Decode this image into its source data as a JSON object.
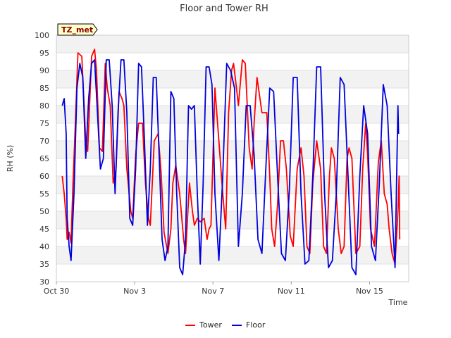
{
  "chart_data": {
    "type": "line",
    "title": "Floor and Tower RH",
    "xlabel": "Time",
    "ylabel": "RH (%)",
    "badge": "TZ_met",
    "xlim": [
      0,
      18
    ],
    "ylim": [
      30,
      100
    ],
    "x_ticks": [
      {
        "label": "Oct 30",
        "value": 0
      },
      {
        "label": "Nov 3",
        "value": 4
      },
      {
        "label": "Nov 7",
        "value": 8
      },
      {
        "label": "Nov 11",
        "value": 12
      },
      {
        "label": "Nov 15",
        "value": 16
      }
    ],
    "y_ticks": [
      30,
      35,
      40,
      45,
      50,
      55,
      60,
      65,
      70,
      75,
      80,
      85,
      90,
      95,
      100
    ],
    "legend": {
      "position": "bottom-center"
    },
    "series": [
      {
        "name": "Tower",
        "color": "#ff0000",
        "x": [
          0.3,
          0.4,
          0.5,
          0.55,
          0.65,
          0.75,
          0.85,
          0.95,
          1.1,
          1.3,
          1.5,
          1.6,
          1.8,
          1.95,
          2.05,
          2.2,
          2.35,
          2.5,
          2.6,
          2.75,
          2.9,
          3.05,
          3.2,
          3.35,
          3.45,
          3.6,
          3.8,
          3.9,
          4.05,
          4.2,
          4.4,
          4.55,
          4.7,
          4.8,
          5.0,
          5.2,
          5.35,
          5.5,
          5.7,
          5.85,
          5.95,
          6.1,
          6.3,
          6.5,
          6.6,
          6.8,
          6.95,
          7.05,
          7.2,
          7.35,
          7.55,
          7.7,
          7.8,
          7.9,
          8.1,
          8.3,
          8.5,
          8.65,
          8.8,
          8.95,
          9.05,
          9.2,
          9.3,
          9.5,
          9.65,
          9.85,
          10.0,
          10.1,
          10.25,
          10.5,
          10.75,
          10.9,
          11.0,
          11.15,
          11.3,
          11.45,
          11.6,
          11.75,
          11.95,
          12.1,
          12.3,
          12.5,
          12.65,
          12.8,
          12.95,
          13.1,
          13.3,
          13.5,
          13.65,
          13.8,
          13.95,
          14.05,
          14.2,
          14.4,
          14.55,
          14.7,
          14.85,
          14.95,
          15.1,
          15.3,
          15.5,
          15.65,
          15.8,
          15.9,
          16.05,
          16.25,
          16.45,
          16.6,
          16.75,
          16.9,
          17.0,
          17.15,
          17.3,
          17.45
        ],
        "values": [
          60,
          55,
          48,
          42,
          44,
          41,
          58,
          72,
          95,
          94,
          70,
          67,
          94,
          96,
          90,
          68,
          67,
          92,
          85,
          80,
          58,
          62,
          84,
          82,
          80,
          62,
          50,
          48,
          66,
          75,
          75,
          58,
          48,
          46,
          70,
          72,
          61,
          44,
          38,
          45,
          58,
          63,
          55,
          42,
          38,
          58,
          50,
          46,
          48,
          47,
          48,
          42,
          45,
          46,
          85,
          70,
          55,
          45,
          78,
          90,
          92,
          85,
          80,
          93,
          92,
          68,
          62,
          75,
          88,
          78,
          78,
          60,
          45,
          40,
          52,
          70,
          70,
          62,
          43,
          40,
          62,
          68,
          60,
          40,
          38,
          58,
          70,
          62,
          40,
          38,
          60,
          68,
          65,
          45,
          38,
          40,
          65,
          68,
          65,
          38,
          40,
          62,
          75,
          66,
          45,
          40,
          64,
          70,
          55,
          52,
          45,
          38,
          35,
          50
        ],
        "end_values": [
          55,
          60,
          42
        ]
      },
      {
        "name": "Floor",
        "color": "#0000dd",
        "x": [
          0.3,
          0.4,
          0.5,
          0.55,
          0.65,
          0.75,
          0.9,
          1.05,
          1.2,
          1.35,
          1.5,
          1.65,
          1.8,
          1.95,
          2.1,
          2.25,
          2.4,
          2.55,
          2.7,
          2.85,
          3.0,
          3.15,
          3.3,
          3.45,
          3.6,
          3.75,
          3.9,
          4.05,
          4.2,
          4.35,
          4.5,
          4.65,
          4.8,
          4.95,
          5.1,
          5.25,
          5.4,
          5.55,
          5.7,
          5.85,
          6.0,
          6.15,
          6.3,
          6.45,
          6.6,
          6.75,
          6.9,
          7.05,
          7.2,
          7.35,
          7.5,
          7.65,
          7.8,
          7.95,
          8.1,
          8.3,
          8.5,
          8.7,
          8.9,
          9.1,
          9.3,
          9.5,
          9.7,
          9.9,
          10.1,
          10.3,
          10.5,
          10.7,
          10.9,
          11.1,
          11.3,
          11.5,
          11.7,
          11.9,
          12.1,
          12.3,
          12.5,
          12.7,
          12.9,
          13.1,
          13.3,
          13.5,
          13.7,
          13.9,
          14.1,
          14.3,
          14.5,
          14.7,
          14.9,
          15.1,
          15.3,
          15.5,
          15.7,
          15.9,
          16.1,
          16.3,
          16.5,
          16.7,
          16.9,
          17.1,
          17.3,
          17.45
        ],
        "values": [
          80,
          82,
          72,
          48,
          40,
          36,
          55,
          85,
          92,
          88,
          65,
          82,
          92,
          93,
          78,
          62,
          65,
          93,
          93,
          80,
          55,
          78,
          93,
          93,
          78,
          48,
          46,
          62,
          92,
          91,
          70,
          46,
          62,
          88,
          88,
          66,
          42,
          36,
          40,
          84,
          82,
          55,
          34,
          32,
          42,
          80,
          79,
          80,
          55,
          35,
          58,
          91,
          91,
          86,
          55,
          36,
          60,
          92,
          90,
          85,
          40,
          55,
          80,
          80,
          66,
          42,
          38,
          62,
          85,
          84,
          60,
          38,
          36,
          56,
          88,
          88,
          55,
          35,
          36,
          60,
          91,
          91,
          55,
          34,
          36,
          55,
          88,
          86,
          60,
          34,
          32,
          60,
          80,
          72,
          40,
          36,
          58,
          86,
          80,
          55,
          34,
          80
        ],
        "end_values": [
          72
        ]
      }
    ]
  }
}
